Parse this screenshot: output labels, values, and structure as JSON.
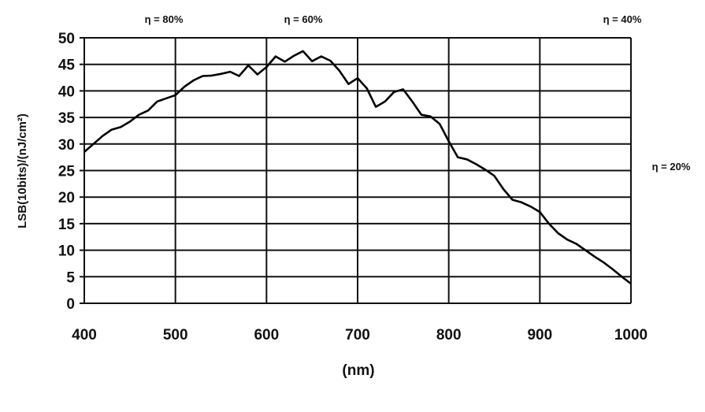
{
  "chart_data": {
    "type": "line",
    "title": "",
    "xlabel": "(nm)",
    "ylabel": "LSB(10bits)/(nJ/cm²)",
    "xlim": [
      400,
      1000
    ],
    "ylim": [
      0,
      50
    ],
    "x_ticks": [
      400,
      500,
      600,
      700,
      800,
      900,
      1000
    ],
    "y_ticks": [
      0,
      5,
      10,
      15,
      20,
      25,
      30,
      35,
      40,
      45,
      50
    ],
    "grid": true,
    "line_color": "#000000",
    "annotations": [
      "η = 80%",
      "η = 60%",
      "η = 40%",
      "η = 20%"
    ],
    "series": [
      {
        "points": [
          [
            400,
            28.5
          ],
          [
            410,
            30
          ],
          [
            420,
            31.5
          ],
          [
            430,
            32.7
          ],
          [
            440,
            33.2
          ],
          [
            450,
            34.2
          ],
          [
            460,
            35.5
          ],
          [
            470,
            36.3
          ],
          [
            480,
            38
          ],
          [
            490,
            38.6
          ],
          [
            500,
            39.2
          ],
          [
            510,
            40.8
          ],
          [
            520,
            42
          ],
          [
            530,
            42.8
          ],
          [
            540,
            42.9
          ],
          [
            550,
            43.2
          ],
          [
            560,
            43.6
          ],
          [
            570,
            42.8
          ],
          [
            580,
            44.8
          ],
          [
            590,
            43.1
          ],
          [
            600,
            44.5
          ],
          [
            610,
            46.5
          ],
          [
            620,
            45.5
          ],
          [
            630,
            46.6
          ],
          [
            640,
            47.5
          ],
          [
            650,
            45.6
          ],
          [
            660,
            46.5
          ],
          [
            670,
            45.7
          ],
          [
            680,
            43.8
          ],
          [
            690,
            41.3
          ],
          [
            700,
            42.4
          ],
          [
            710,
            40.5
          ],
          [
            720,
            37
          ],
          [
            730,
            38
          ],
          [
            740,
            39.8
          ],
          [
            750,
            40.3
          ],
          [
            760,
            38
          ],
          [
            770,
            35.5
          ],
          [
            780,
            35.2
          ],
          [
            790,
            33.8
          ],
          [
            800,
            30.5
          ],
          [
            810,
            27.5
          ],
          [
            820,
            27.1
          ],
          [
            830,
            26.2
          ],
          [
            840,
            25.2
          ],
          [
            850,
            24
          ],
          [
            860,
            21.5
          ],
          [
            870,
            19.5
          ],
          [
            880,
            19
          ],
          [
            890,
            18.2
          ],
          [
            900,
            17.2
          ],
          [
            910,
            15
          ],
          [
            920,
            13.2
          ],
          [
            930,
            12
          ],
          [
            940,
            11.2
          ],
          [
            950,
            10
          ],
          [
            960,
            8.8
          ],
          [
            970,
            7.7
          ],
          [
            980,
            6.4
          ],
          [
            990,
            5
          ],
          [
            1000,
            3.7
          ]
        ]
      }
    ]
  }
}
